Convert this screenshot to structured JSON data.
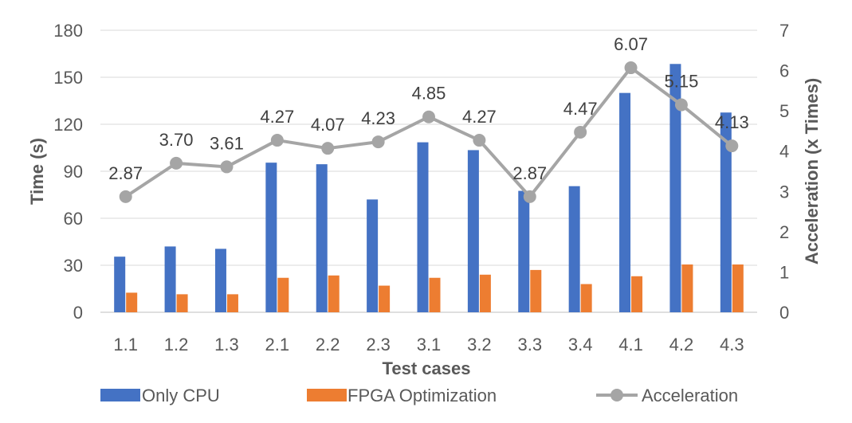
{
  "chart_data": {
    "type": "bar",
    "title": "",
    "xlabel": "Test cases",
    "ylabel": "Time (s)",
    "y2label": "Acceleration (x Times)",
    "categories": [
      "1.1",
      "1.2",
      "1.3",
      "2.1",
      "2.2",
      "2.3",
      "3.1",
      "3.2",
      "3.3",
      "3.4",
      "4.1",
      "4.2",
      "4.3"
    ],
    "ylim": [
      0,
      180
    ],
    "yticks": [
      0,
      30,
      60,
      90,
      120,
      150,
      180
    ],
    "y2lim": [
      0,
      7
    ],
    "y2ticks": [
      0,
      1,
      2,
      3,
      4,
      5,
      6,
      7
    ],
    "grid": true,
    "legend_position": "bottom",
    "series": [
      {
        "name": "Only CPU",
        "kind": "bar",
        "axis": "left",
        "color": "#4472C4",
        "values": [
          35.5,
          42,
          40.5,
          95.5,
          94.5,
          72,
          108.5,
          103.5,
          77.5,
          80.5,
          140,
          158.5,
          127.5
        ]
      },
      {
        "name": "FPGA Optimization",
        "kind": "bar",
        "axis": "left",
        "color": "#ED7D31",
        "values": [
          12.5,
          11.5,
          11.5,
          22,
          23.5,
          17,
          22,
          24,
          27,
          18,
          23,
          30.5,
          30.5
        ]
      },
      {
        "name": "Acceleration",
        "kind": "line",
        "axis": "right",
        "color": "#A5A5A5",
        "values": [
          2.87,
          3.7,
          3.61,
          4.27,
          4.07,
          4.23,
          4.85,
          4.27,
          2.87,
          4.47,
          6.07,
          5.15,
          4.13
        ],
        "labels": [
          "2.87",
          "3.70",
          "3.61",
          "4.27",
          "4.07",
          "4.23",
          "4.85",
          "4.27",
          "2.87",
          "4.47",
          "6.07",
          "5.15",
          "4.13"
        ]
      }
    ]
  }
}
